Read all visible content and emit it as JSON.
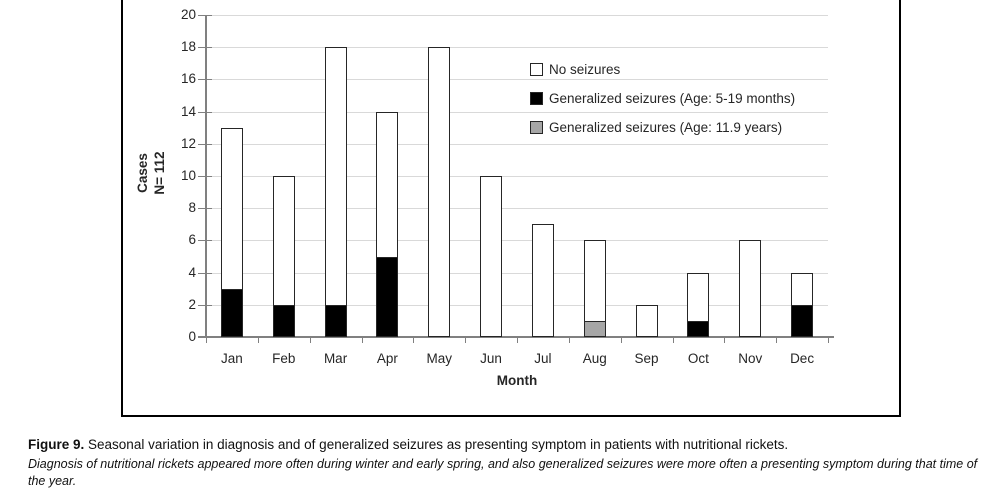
{
  "figure_caption": {
    "label": "Figure 9.",
    "text": "Seasonal variation in diagnosis and of generalized seizures as presenting symptom in patients with nutritional rickets.",
    "note": "Diagnosis of nutritional rickets appeared more often during winter and early spring, and also generalized seizures were more often a presenting symptom during that time of the year."
  },
  "chart_data": {
    "type": "bar",
    "stacked": true,
    "title": "",
    "categories": [
      "Jan",
      "Feb",
      "Mar",
      "Apr",
      "May",
      "Jun",
      "Jul",
      "Aug",
      "Sep",
      "Oct",
      "Nov",
      "Dec"
    ],
    "series": [
      {
        "name": "Generalized seizures (Age: 5-19 months)",
        "color": "#000000",
        "values": [
          3,
          2,
          2,
          5,
          0,
          0,
          0,
          0,
          0,
          1,
          0,
          2
        ]
      },
      {
        "name": "Generalized seizures (Age: 11.9 years)",
        "color": "#a6a6a6",
        "values": [
          0,
          0,
          0,
          0,
          0,
          0,
          0,
          1,
          0,
          0,
          0,
          0
        ]
      },
      {
        "name": "No seizures",
        "color": "#ffffff",
        "values": [
          10,
          8,
          16,
          9,
          18,
          10,
          7,
          5,
          2,
          3,
          6,
          2
        ]
      }
    ],
    "totals": [
      13,
      10,
      18,
      14,
      18,
      10,
      7,
      6,
      2,
      4,
      6,
      4
    ],
    "legend": [
      {
        "label": "No seizures",
        "color": "#ffffff"
      },
      {
        "label": "Generalized seizures (Age: 5-19 months)",
        "color": "#000000"
      },
      {
        "label": "Generalized seizures (Age: 11.9 years)",
        "color": "#a6a6a6"
      }
    ],
    "xlabel": "Month",
    "ylabel_lines": [
      "Cases",
      "N= 112"
    ],
    "ylim": [
      0,
      20
    ],
    "ytick_step": 2,
    "yticks": [
      "0",
      "2",
      "4",
      "6",
      "8",
      "10",
      "12",
      "14",
      "16",
      "18",
      "20"
    ],
    "grid": true,
    "legend_position": "top-right-inside"
  },
  "colors": {
    "gridline": "#d9d9d9",
    "axis": "#808080",
    "bar_border": "#262626",
    "frame_border": "#000000",
    "text": "#262626"
  }
}
